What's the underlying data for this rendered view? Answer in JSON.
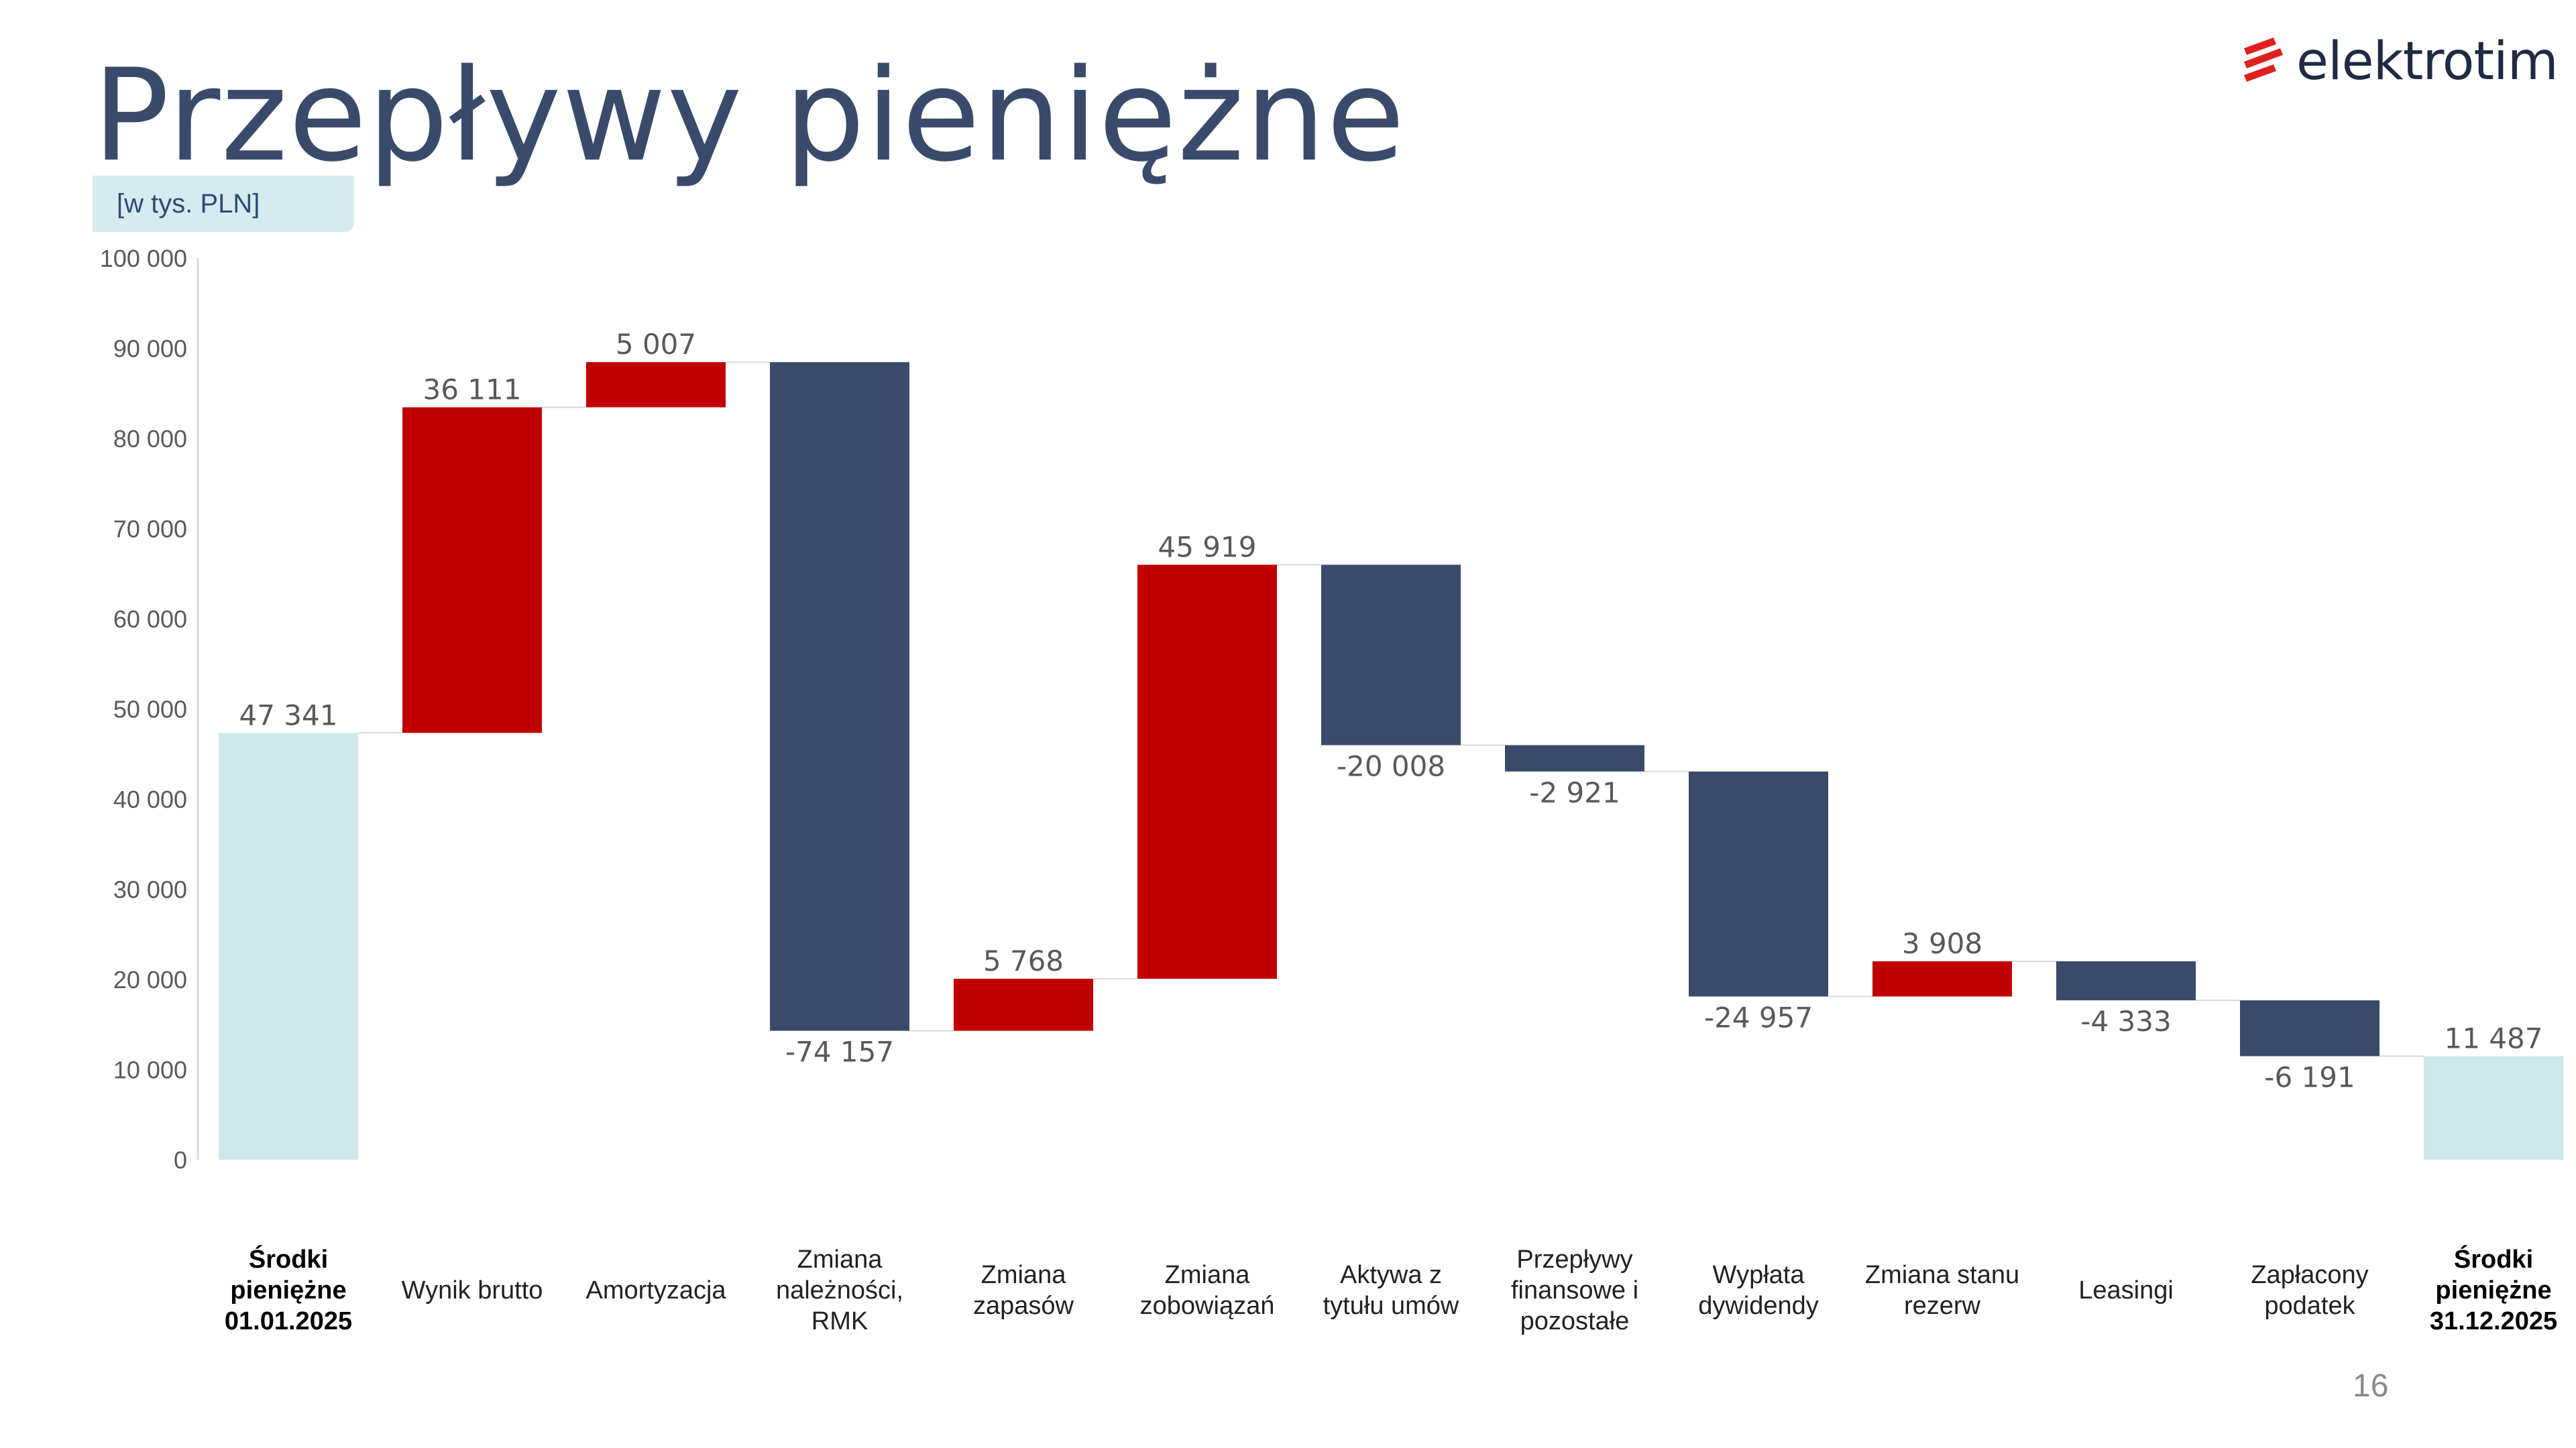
{
  "page": {
    "title": "Przepływy pieniężne",
    "unit": "[w tys. PLN]",
    "logo_text": "elektrotim",
    "page_number": "16"
  },
  "colors": {
    "total": "#cfe8ec",
    "increase": "#c00000",
    "decrease": "#3a4a6b",
    "title": "#3a4a6b"
  },
  "chart_data": {
    "type": "waterfall",
    "title": "Przepływy pieniężne",
    "unit": "[w tys. PLN]",
    "ylim": [
      0,
      100000
    ],
    "yticks": [
      "0",
      "10 000",
      "20 000",
      "30 000",
      "40 000",
      "50 000",
      "60 000",
      "70 000",
      "80 000",
      "90 000",
      "100 000"
    ],
    "ytick_values": [
      0,
      10000,
      20000,
      30000,
      40000,
      50000,
      60000,
      70000,
      80000,
      90000,
      100000
    ],
    "bars": [
      {
        "category": "Środki pieniężne 01.01.2025",
        "value": 47341,
        "label": "47 341",
        "kind": "total"
      },
      {
        "category": "Wynik brutto",
        "value": 36111,
        "label": "36 111",
        "kind": "delta"
      },
      {
        "category": "Amortyzacja",
        "value": 5007,
        "label": "5 007",
        "kind": "delta"
      },
      {
        "category": "Zmiana należności, RMK",
        "value": -74157,
        "label": "-74 157",
        "kind": "delta"
      },
      {
        "category": "Zmiana zapasów",
        "value": 5768,
        "label": "5 768",
        "kind": "delta"
      },
      {
        "category": "Zmiana zobowiązań",
        "value": 45919,
        "label": "45 919",
        "kind": "delta"
      },
      {
        "category": "Aktywa z tytułu umów",
        "value": -20008,
        "label": "-20 008",
        "kind": "delta"
      },
      {
        "category": "Przepływy finansowe i pozostałe",
        "value": -2921,
        "label": "-2 921",
        "kind": "delta"
      },
      {
        "category": "Wypłata dywidendy",
        "value": -24957,
        "label": "-24 957",
        "kind": "delta"
      },
      {
        "category": "Zmiana stanu rezerw",
        "value": 3908,
        "label": "3 908",
        "kind": "delta"
      },
      {
        "category": "Leasingi",
        "value": -4333,
        "label": "-4 333",
        "kind": "delta"
      },
      {
        "category": "Zapłacony podatek",
        "value": -6191,
        "label": "-6 191",
        "kind": "delta"
      },
      {
        "category": "Środki pieniężne 31.12.2025",
        "value": 11487,
        "label": "11 487",
        "kind": "total"
      }
    ]
  },
  "categories_display": [
    {
      "text": "Środki\npieniężne\n01.01.2025",
      "bold": true
    },
    {
      "text": "Wynik brutto",
      "bold": false
    },
    {
      "text": "Amortyzacja",
      "bold": false
    },
    {
      "text": "Zmiana\nnależności,\nRMK",
      "bold": false
    },
    {
      "text": "Zmiana\nzapasów",
      "bold": false
    },
    {
      "text": "Zmiana\nzobowiązań",
      "bold": false
    },
    {
      "text": "Aktywa z\ntytułu umów",
      "bold": false
    },
    {
      "text": "Przepływy\nfinansowe i\npozostałe",
      "bold": false
    },
    {
      "text": "Wypłata\ndywidendy",
      "bold": false
    },
    {
      "text": "Zmiana stanu\nrezerw",
      "bold": false
    },
    {
      "text": "Leasingi",
      "bold": false
    },
    {
      "text": "Zapłacony\npodatek",
      "bold": false
    },
    {
      "text": "Środki\npieniężne\n31.12.2025",
      "bold": true
    }
  ]
}
